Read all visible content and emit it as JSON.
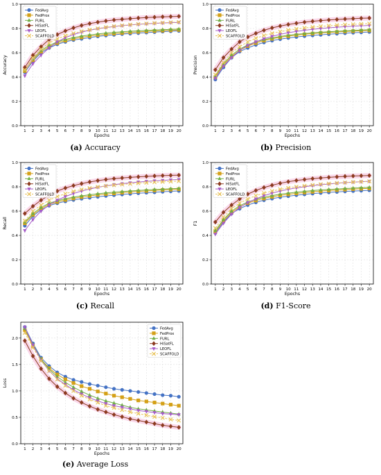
{
  "figure": {
    "series_styles": [
      {
        "name": "FedAvg",
        "color": "#4472C4",
        "marker": "circle"
      },
      {
        "name": "FedProx",
        "color": "#D4A017",
        "marker": "square"
      },
      {
        "name": "FURL",
        "color": "#70AD47",
        "marker": "triangle-up"
      },
      {
        "name": "HiSatFL",
        "color": "#8B3A1F",
        "marker": "diamond"
      },
      {
        "name": "LEOFL",
        "color": "#A65CC8",
        "marker": "triangle-down"
      },
      {
        "name": "SCAFFOLD",
        "color": "#E8C35A",
        "marker": "x"
      }
    ]
  },
  "chart_data": [
    {
      "id": "accuracy",
      "type": "line",
      "caption_letter": "(a)",
      "caption_text": "Accuracy",
      "xlabel": "Epochs",
      "ylabel": "Accuracy",
      "x": [
        1,
        2,
        3,
        4,
        5,
        6,
        7,
        8,
        9,
        10,
        11,
        12,
        13,
        14,
        15,
        16,
        17,
        18,
        19,
        20
      ],
      "ylim": [
        0.0,
        1.0
      ],
      "yticks": [
        "0.0",
        "0.2",
        "0.4",
        "0.6",
        "0.8",
        "1.0"
      ],
      "ytick_values": [
        0.0,
        0.2,
        0.4,
        0.6,
        0.8,
        1.0
      ],
      "grid": true,
      "legend": "top-left",
      "series": [
        {
          "name": "FedAvg",
          "values": [
            0.44,
            0.53,
            0.6,
            0.64,
            0.67,
            0.69,
            0.705,
            0.715,
            0.725,
            0.735,
            0.742,
            0.748,
            0.754,
            0.758,
            0.762,
            0.766,
            0.77,
            0.774,
            0.777,
            0.78
          ]
        },
        {
          "name": "FedProx",
          "values": [
            0.45,
            0.54,
            0.61,
            0.65,
            0.68,
            0.7,
            0.715,
            0.727,
            0.737,
            0.745,
            0.752,
            0.758,
            0.763,
            0.768,
            0.772,
            0.776,
            0.779,
            0.782,
            0.785,
            0.788
          ]
        },
        {
          "name": "FURL",
          "values": [
            0.46,
            0.55,
            0.62,
            0.66,
            0.69,
            0.71,
            0.725,
            0.737,
            0.747,
            0.755,
            0.762,
            0.768,
            0.773,
            0.777,
            0.781,
            0.784,
            0.787,
            0.79,
            0.793,
            0.795
          ]
        },
        {
          "name": "HiSatFL",
          "values": [
            0.48,
            0.58,
            0.65,
            0.71,
            0.75,
            0.78,
            0.805,
            0.825,
            0.84,
            0.852,
            0.862,
            0.87,
            0.876,
            0.881,
            0.886,
            0.89,
            0.893,
            0.896,
            0.898,
            0.9
          ]
        },
        {
          "name": "LEOFL",
          "values": [
            0.41,
            0.51,
            0.58,
            0.64,
            0.69,
            0.725,
            0.75,
            0.77,
            0.786,
            0.798,
            0.808,
            0.816,
            0.823,
            0.829,
            0.834,
            0.838,
            0.842,
            0.845,
            0.848,
            0.85
          ]
        },
        {
          "name": "SCAFFOLD",
          "values": [
            0.46,
            0.56,
            0.63,
            0.68,
            0.715,
            0.74,
            0.76,
            0.776,
            0.789,
            0.8,
            0.81,
            0.818,
            0.825,
            0.831,
            0.836,
            0.84,
            0.844,
            0.847,
            0.85,
            0.853
          ]
        }
      ]
    },
    {
      "id": "precision",
      "type": "line",
      "caption_letter": "(b)",
      "caption_text": "Precision",
      "xlabel": "Epochs",
      "ylabel": "Precision",
      "x": [
        1,
        2,
        3,
        4,
        5,
        6,
        7,
        8,
        9,
        10,
        11,
        12,
        13,
        14,
        15,
        16,
        17,
        18,
        19,
        20
      ],
      "ylim": [
        0.0,
        1.0
      ],
      "yticks": [
        "0.0",
        "0.2",
        "0.4",
        "0.6",
        "0.8",
        "1.0"
      ],
      "ytick_values": [
        0.0,
        0.2,
        0.4,
        0.6,
        0.8,
        1.0
      ],
      "grid": true,
      "legend": "top-left",
      "series": [
        {
          "name": "FedAvg",
          "values": [
            0.38,
            0.48,
            0.56,
            0.61,
            0.64,
            0.665,
            0.685,
            0.7,
            0.712,
            0.722,
            0.73,
            0.737,
            0.743,
            0.748,
            0.753,
            0.757,
            0.761,
            0.765,
            0.768,
            0.771
          ]
        },
        {
          "name": "FedProx",
          "values": [
            0.4,
            0.5,
            0.57,
            0.62,
            0.655,
            0.68,
            0.7,
            0.715,
            0.727,
            0.737,
            0.745,
            0.752,
            0.758,
            0.763,
            0.767,
            0.771,
            0.775,
            0.778,
            0.781,
            0.784
          ]
        },
        {
          "name": "FURL",
          "values": [
            0.41,
            0.51,
            0.58,
            0.63,
            0.665,
            0.69,
            0.708,
            0.722,
            0.734,
            0.744,
            0.752,
            0.758,
            0.764,
            0.769,
            0.773,
            0.777,
            0.781,
            0.784,
            0.787,
            0.79
          ]
        },
        {
          "name": "HiSatFL",
          "values": [
            0.46,
            0.56,
            0.63,
            0.69,
            0.73,
            0.76,
            0.785,
            0.805,
            0.82,
            0.833,
            0.843,
            0.852,
            0.859,
            0.865,
            0.87,
            0.874,
            0.878,
            0.881,
            0.884,
            0.886
          ]
        },
        {
          "name": "LEOFL",
          "values": [
            0.39,
            0.49,
            0.56,
            0.62,
            0.66,
            0.69,
            0.715,
            0.735,
            0.752,
            0.765,
            0.776,
            0.785,
            0.793,
            0.8,
            0.806,
            0.811,
            0.815,
            0.819,
            0.822,
            0.825
          ]
        },
        {
          "name": "SCAFFOLD",
          "values": [
            0.42,
            0.52,
            0.6,
            0.65,
            0.69,
            0.72,
            0.742,
            0.76,
            0.774,
            0.786,
            0.796,
            0.804,
            0.811,
            0.817,
            0.822,
            0.827,
            0.831,
            0.834,
            0.837,
            0.84
          ]
        }
      ]
    },
    {
      "id": "recall",
      "type": "line",
      "caption_letter": "(c)",
      "caption_text": "Recall",
      "xlabel": "Epochs",
      "ylabel": "Recall",
      "x": [
        1,
        2,
        3,
        4,
        5,
        6,
        7,
        8,
        9,
        10,
        11,
        12,
        13,
        14,
        15,
        16,
        17,
        18,
        19,
        20
      ],
      "ylim": [
        0.0,
        1.0
      ],
      "yticks": [
        "0.0",
        "0.2",
        "0.4",
        "0.6",
        "0.8",
        "1.0"
      ],
      "ytick_values": [
        0.0,
        0.2,
        0.4,
        0.6,
        0.8,
        1.0
      ],
      "grid": true,
      "legend": "top-left",
      "series": [
        {
          "name": "FedAvg",
          "values": [
            0.48,
            0.56,
            0.61,
            0.645,
            0.665,
            0.68,
            0.692,
            0.702,
            0.71,
            0.718,
            0.725,
            0.731,
            0.737,
            0.742,
            0.747,
            0.751,
            0.755,
            0.759,
            0.763,
            0.766
          ]
        },
        {
          "name": "FedProx",
          "values": [
            0.5,
            0.57,
            0.62,
            0.655,
            0.675,
            0.692,
            0.705,
            0.716,
            0.725,
            0.733,
            0.74,
            0.746,
            0.752,
            0.757,
            0.762,
            0.766,
            0.77,
            0.774,
            0.777,
            0.78
          ]
        },
        {
          "name": "FURL",
          "values": [
            0.51,
            0.58,
            0.63,
            0.665,
            0.685,
            0.702,
            0.715,
            0.726,
            0.735,
            0.743,
            0.75,
            0.756,
            0.761,
            0.766,
            0.77,
            0.774,
            0.778,
            0.781,
            0.784,
            0.787
          ]
        },
        {
          "name": "HiSatFL",
          "values": [
            0.58,
            0.64,
            0.69,
            0.73,
            0.765,
            0.79,
            0.81,
            0.826,
            0.84,
            0.851,
            0.86,
            0.867,
            0.873,
            0.878,
            0.882,
            0.886,
            0.889,
            0.892,
            0.894,
            0.896
          ]
        },
        {
          "name": "LEOFL",
          "values": [
            0.44,
            0.53,
            0.6,
            0.65,
            0.69,
            0.72,
            0.745,
            0.765,
            0.782,
            0.796,
            0.808,
            0.818,
            0.826,
            0.833,
            0.839,
            0.844,
            0.849,
            0.853,
            0.857,
            0.86
          ]
        },
        {
          "name": "SCAFFOLD",
          "values": [
            0.52,
            0.6,
            0.65,
            0.69,
            0.72,
            0.743,
            0.762,
            0.777,
            0.789,
            0.799,
            0.807,
            0.814,
            0.82,
            0.825,
            0.83,
            0.834,
            0.838,
            0.841,
            0.844,
            0.847
          ]
        }
      ]
    },
    {
      "id": "f1",
      "type": "line",
      "caption_letter": "(d)",
      "caption_text": "F1-Score",
      "xlabel": "Epochs",
      "ylabel": "F1",
      "x": [
        1,
        2,
        3,
        4,
        5,
        6,
        7,
        8,
        9,
        10,
        11,
        12,
        13,
        14,
        15,
        16,
        17,
        18,
        19,
        20
      ],
      "ylim": [
        0.0,
        1.0
      ],
      "yticks": [
        "0.0",
        "0.2",
        "0.4",
        "0.6",
        "0.8",
        "1.0"
      ],
      "ytick_values": [
        0.0,
        0.2,
        0.4,
        0.6,
        0.8,
        1.0
      ],
      "grid": true,
      "legend": "top-left",
      "series": [
        {
          "name": "FedAvg",
          "values": [
            0.42,
            0.51,
            0.58,
            0.62,
            0.65,
            0.672,
            0.69,
            0.703,
            0.714,
            0.723,
            0.731,
            0.738,
            0.744,
            0.749,
            0.754,
            0.758,
            0.762,
            0.765,
            0.768,
            0.771
          ]
        },
        {
          "name": "FedProx",
          "values": [
            0.43,
            0.52,
            0.59,
            0.635,
            0.665,
            0.687,
            0.704,
            0.718,
            0.729,
            0.738,
            0.746,
            0.753,
            0.759,
            0.764,
            0.769,
            0.773,
            0.777,
            0.781,
            0.784,
            0.787
          ]
        },
        {
          "name": "FURL",
          "values": [
            0.44,
            0.53,
            0.6,
            0.645,
            0.675,
            0.697,
            0.714,
            0.728,
            0.739,
            0.748,
            0.756,
            0.763,
            0.769,
            0.774,
            0.778,
            0.782,
            0.786,
            0.789,
            0.792,
            0.795
          ]
        },
        {
          "name": "HiSatFL",
          "values": [
            0.51,
            0.59,
            0.65,
            0.7,
            0.74,
            0.77,
            0.794,
            0.813,
            0.829,
            0.842,
            0.852,
            0.86,
            0.867,
            0.873,
            0.878,
            0.882,
            0.886,
            0.889,
            0.891,
            0.893
          ]
        },
        {
          "name": "LEOFL",
          "values": [
            0.41,
            0.5,
            0.575,
            0.63,
            0.67,
            0.7,
            0.727,
            0.748,
            0.765,
            0.779,
            0.791,
            0.801,
            0.81,
            0.817,
            0.823,
            0.829,
            0.834,
            0.838,
            0.842,
            0.845
          ]
        },
        {
          "name": "SCAFFOLD",
          "values": [
            0.46,
            0.55,
            0.62,
            0.665,
            0.7,
            0.727,
            0.748,
            0.765,
            0.779,
            0.791,
            0.8,
            0.808,
            0.815,
            0.821,
            0.826,
            0.831,
            0.835,
            0.839,
            0.842,
            0.845
          ]
        }
      ]
    },
    {
      "id": "loss",
      "type": "line",
      "caption_letter": "(e)",
      "caption_text": "Average Loss",
      "xlabel": "Epochs",
      "ylabel": "Loss",
      "x": [
        1,
        2,
        3,
        4,
        5,
        6,
        7,
        8,
        9,
        10,
        11,
        12,
        13,
        14,
        15,
        16,
        17,
        18,
        19,
        20
      ],
      "ylim": [
        0.0,
        2.3
      ],
      "yticks": [
        "0.0",
        "0.5",
        "1.0",
        "1.5",
        "2.0"
      ],
      "ytick_values": [
        0.0,
        0.5,
        1.0,
        1.5,
        2.0
      ],
      "grid": true,
      "legend": "top-right",
      "series": [
        {
          "name": "FedAvg",
          "values": [
            2.21,
            1.9,
            1.63,
            1.47,
            1.35,
            1.27,
            1.21,
            1.17,
            1.13,
            1.1,
            1.07,
            1.04,
            1.02,
            1.0,
            0.98,
            0.96,
            0.94,
            0.92,
            0.91,
            0.89
          ]
        },
        {
          "name": "FedProx",
          "values": [
            2.15,
            1.85,
            1.6,
            1.43,
            1.31,
            1.22,
            1.15,
            1.09,
            1.04,
            0.99,
            0.95,
            0.91,
            0.88,
            0.85,
            0.82,
            0.8,
            0.78,
            0.76,
            0.74,
            0.72
          ]
        },
        {
          "name": "FURL",
          "values": [
            2.18,
            1.88,
            1.6,
            1.41,
            1.27,
            1.16,
            1.07,
            0.99,
            0.92,
            0.86,
            0.81,
            0.77,
            0.73,
            0.69,
            0.66,
            0.64,
            0.62,
            0.6,
            0.58,
            0.56
          ]
        },
        {
          "name": "HiSatFL",
          "values": [
            1.95,
            1.66,
            1.42,
            1.23,
            1.08,
            0.96,
            0.86,
            0.78,
            0.71,
            0.65,
            0.6,
            0.55,
            0.51,
            0.47,
            0.44,
            0.41,
            0.38,
            0.35,
            0.33,
            0.31
          ]
        },
        {
          "name": "LEOFL",
          "values": [
            2.21,
            1.87,
            1.58,
            1.38,
            1.23,
            1.12,
            1.02,
            0.94,
            0.87,
            0.81,
            0.76,
            0.72,
            0.69,
            0.66,
            0.63,
            0.61,
            0.59,
            0.57,
            0.56,
            0.55
          ]
        },
        {
          "name": "SCAFFOLD",
          "values": [
            2.1,
            1.82,
            1.57,
            1.38,
            1.22,
            1.1,
            1.0,
            0.91,
            0.84,
            0.78,
            0.72,
            0.68,
            0.64,
            0.6,
            0.57,
            0.54,
            0.51,
            0.49,
            0.46,
            0.44
          ]
        }
      ]
    }
  ]
}
